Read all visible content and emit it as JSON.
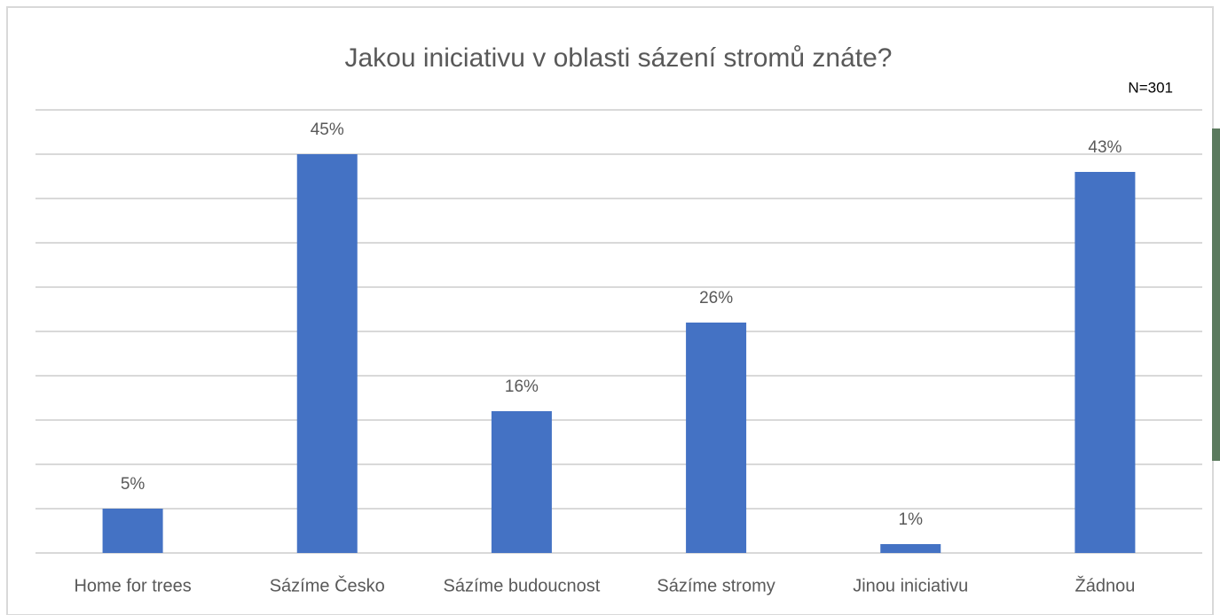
{
  "chart_data": {
    "type": "bar",
    "title": "Jakou iniciativu v oblasti sázení stromů znáte?",
    "annotation": "N=301",
    "categories": [
      "Home for trees",
      "Sázíme Česko",
      "Sázíme budoucnost",
      "Sázíme stromy",
      "Jinou iniciativu",
      "Žádnou"
    ],
    "values": [
      5,
      45,
      16,
      26,
      1,
      43
    ],
    "value_labels": [
      "5%",
      "45%",
      "16%",
      "26%",
      "1%",
      "43%"
    ],
    "color": "#4472c4",
    "ylim": [
      0,
      50
    ],
    "yticks": [
      0,
      5,
      10,
      15,
      20,
      25,
      30,
      35,
      40,
      45,
      50
    ],
    "grid": true
  }
}
